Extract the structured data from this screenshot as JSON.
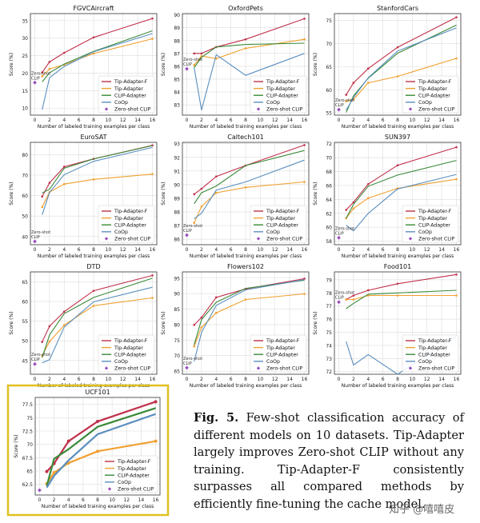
{
  "caption": {
    "label": "Fig. 5.",
    "text": "Few-shot classification accuracy of different models on 10 datasets. Tip-Adapter largely improves Zero-shot CLIP without any training. Tip-Adapter-F consistently surpasses all compared methods by efficiently fine-tuning the cache model."
  },
  "watermark": "知乎 @嘻嘻皮",
  "colors": {
    "tip_adapter_f": "#c0304a",
    "tip_adapter": "#f0a030",
    "clip_adapter": "#3a8a3a",
    "coop": "#5b8fbf",
    "zero_shot": "#9a4fc0",
    "highlight_border": "#e0c020"
  },
  "chart_data": [
    {
      "type": "line",
      "title": "FGVCAircraft",
      "xlabel": "Number of labeled training examples per class",
      "ylabel": "Score (%)",
      "x": [
        1,
        2,
        4,
        8,
        16
      ],
      "xticks": [
        0,
        2,
        4,
        6,
        8,
        10,
        12,
        14,
        16
      ],
      "ylim": [
        8,
        37
      ],
      "yticks": [
        10,
        15,
        20,
        25,
        30,
        35
      ],
      "series": [
        {
          "name": "Tip-Adapter-F",
          "values": [
            20.2,
            23.2,
            25.8,
            30.2,
            35.6
          ]
        },
        {
          "name": "Tip-Adapter",
          "values": [
            19.1,
            21.2,
            22.4,
            25.6,
            29.8
          ]
        },
        {
          "name": "CLIP-Adapter",
          "values": [
            17.5,
            20.1,
            22.6,
            26.2,
            32.1
          ]
        },
        {
          "name": "CoOp",
          "values": [
            9.6,
            18.7,
            21.9,
            26.1,
            31.3
          ]
        }
      ],
      "zero_shot": {
        "name": "Zero-shot CLIP",
        "x": 0,
        "value": 17.3,
        "label": "Zero-shot CLIP"
      },
      "legend": "bottom-right"
    },
    {
      "type": "line",
      "title": "OxfordPets",
      "xlabel": "Number of labeled training examples per class",
      "ylabel": "Score (%)",
      "x": [
        1,
        2,
        4,
        8,
        16
      ],
      "xticks": [
        0,
        2,
        4,
        6,
        8,
        10,
        12,
        14,
        16
      ],
      "ylim": [
        82.2,
        90.1
      ],
      "yticks": [
        83,
        84,
        85,
        86,
        87,
        88,
        89,
        90
      ],
      "series": [
        {
          "name": "Tip-Adapter-F",
          "values": [
            87.0,
            87.0,
            87.5,
            88.1,
            89.7
          ]
        },
        {
          "name": "Tip-Adapter",
          "values": [
            86.1,
            86.8,
            86.6,
            87.4,
            88.1
          ]
        },
        {
          "name": "CLIP-Adapter",
          "values": [
            85.9,
            86.7,
            87.5,
            87.7,
            87.8
          ]
        },
        {
          "name": "CoOp",
          "values": [
            85.9,
            82.6,
            86.9,
            85.3,
            87.0
          ]
        }
      ],
      "zero_shot": {
        "name": "Zero-shot CLIP",
        "x": 0,
        "value": 85.8,
        "label": "Zero-shot CLIP"
      },
      "legend": "bottom-right"
    },
    {
      "type": "line",
      "title": "StanfordCars",
      "xlabel": "Number of labeled training examples per class",
      "ylabel": "Score (%)",
      "x": [
        1,
        2,
        4,
        8,
        16
      ],
      "xticks": [
        0,
        2,
        4,
        6,
        8,
        10,
        12,
        14,
        16
      ],
      "ylim": [
        54.5,
        76.5
      ],
      "yticks": [
        55,
        60,
        65,
        70,
        75
      ],
      "series": [
        {
          "name": "Tip-Adapter-F",
          "values": [
            58.9,
            61.5,
            64.6,
            69.2,
            75.7
          ]
        },
        {
          "name": "Tip-Adapter",
          "values": [
            57.5,
            57.9,
            61.5,
            62.9,
            66.8
          ]
        },
        {
          "name": "CLIP-Adapter",
          "values": [
            55.1,
            58.7,
            62.5,
            67.9,
            74.0
          ]
        },
        {
          "name": "CoOp",
          "values": [
            55.6,
            58.3,
            62.6,
            68.4,
            73.4
          ]
        }
      ],
      "zero_shot": {
        "name": "Zero-shot CLIP",
        "x": 0,
        "value": 55.7,
        "label": "Zero-shot CLIP"
      },
      "legend": "bottom-right"
    },
    {
      "type": "line",
      "title": "EuroSAT",
      "xlabel": "Number of labeled training examples per class",
      "ylabel": "Score (%)",
      "x": [
        1,
        2,
        4,
        8,
        16
      ],
      "xticks": [
        0,
        2,
        4,
        6,
        8,
        10,
        12,
        14,
        16
      ],
      "ylim": [
        36,
        86
      ],
      "yticks": [
        40,
        50,
        60,
        70,
        80
      ],
      "series": [
        {
          "name": "Tip-Adapter-F",
          "values": [
            59.5,
            66.2,
            74.1,
            77.9,
            84.5
          ]
        },
        {
          "name": "Tip-Adapter",
          "values": [
            54.4,
            61.7,
            65.6,
            67.9,
            70.5
          ]
        },
        {
          "name": "CLIP-Adapter",
          "values": [
            61.3,
            63.1,
            73.4,
            77.9,
            84.4
          ]
        },
        {
          "name": "CoOp",
          "values": [
            50.6,
            61.5,
            70.2,
            76.7,
            83.5
          ]
        }
      ],
      "zero_shot": {
        "name": "Zero-shot CLIP",
        "x": 0,
        "value": 37.6,
        "label": "Zero-shot CLIP"
      },
      "legend": "bottom-right"
    },
    {
      "type": "line",
      "title": "Caltech101",
      "xlabel": "Number of labeled training examples per class",
      "ylabel": "Score (%)",
      "x": [
        1,
        2,
        4,
        8,
        16
      ],
      "xticks": [
        0,
        2,
        4,
        6,
        8,
        10,
        12,
        14,
        16
      ],
      "ylim": [
        85.6,
        93.1
      ],
      "yticks": [
        86,
        87,
        88,
        89,
        90,
        91,
        92,
        93
      ],
      "series": [
        {
          "name": "Tip-Adapter-F",
          "values": [
            89.3,
            89.7,
            90.6,
            91.4,
            92.9
          ]
        },
        {
          "name": "Tip-Adapter",
          "values": [
            87.2,
            88.4,
            89.4,
            89.8,
            90.2
          ]
        },
        {
          "name": "CLIP-Adapter",
          "values": [
            88.6,
            89.4,
            89.9,
            91.4,
            92.5
          ]
        },
        {
          "name": "CoOp",
          "values": [
            87.5,
            87.9,
            89.6,
            90.2,
            91.8
          ]
        }
      ],
      "zero_shot": {
        "name": "Zero-shot CLIP",
        "x": 0,
        "value": 86.3,
        "label": "Zero-shot CLIP"
      },
      "legend": "bottom-right"
    },
    {
      "type": "line",
      "title": "SUN397",
      "xlabel": "Number of labeled training examples per class",
      "ylabel": "Score (%)",
      "x": [
        1,
        2,
        4,
        8,
        16
      ],
      "xticks": [
        0,
        2,
        4,
        6,
        8,
        10,
        12,
        14,
        16
      ],
      "ylim": [
        57.5,
        72.2
      ],
      "yticks": [
        58,
        60,
        62,
        64,
        66,
        68,
        70,
        72
      ],
      "series": [
        {
          "name": "Tip-Adapter-F",
          "values": [
            62.5,
            63.6,
            66.2,
            68.9,
            71.5
          ]
        },
        {
          "name": "Tip-Adapter",
          "values": [
            61.3,
            62.7,
            64.2,
            65.6,
            66.9
          ]
        },
        {
          "name": "CLIP-Adapter",
          "values": [
            61.3,
            63.3,
            65.9,
            67.5,
            69.6
          ]
        },
        {
          "name": "CoOp",
          "values": [
            60.3,
            59.5,
            62.0,
            65.5,
            67.6
          ]
        }
      ],
      "zero_shot": {
        "name": "Zero-shot CLIP",
        "x": 0,
        "value": 58.5,
        "label": "Zero-shot CLIP"
      },
      "legend": "bottom-right"
    },
    {
      "type": "line",
      "title": "DTD",
      "xlabel": "Number of labeled training examples per class",
      "ylabel": "Score (%)",
      "x": [
        1,
        2,
        4,
        8,
        16
      ],
      "xticks": [
        0,
        2,
        4,
        6,
        8,
        10,
        12,
        14,
        16
      ],
      "ylim": [
        41.5,
        67.5
      ],
      "yticks": [
        45,
        50,
        55,
        60,
        65
      ],
      "series": [
        {
          "name": "Tip-Adapter-F",
          "values": [
            49.7,
            53.7,
            57.4,
            62.7,
            66.6
          ]
        },
        {
          "name": "Tip-Adapter",
          "values": [
            46.2,
            49.8,
            54.0,
            58.9,
            60.9
          ]
        },
        {
          "name": "CLIP-Adapter",
          "values": [
            45.7,
            51.5,
            56.9,
            61.0,
            65.9
          ]
        },
        {
          "name": "CoOp",
          "values": [
            44.4,
            45.2,
            53.5,
            59.9,
            63.6
          ]
        }
      ],
      "zero_shot": {
        "name": "Zero-shot CLIP",
        "x": 0,
        "value": 44.1,
        "label": "Zero-shot CLIP"
      },
      "legend": "bottom-right"
    },
    {
      "type": "line",
      "title": "Flowers102",
      "xlabel": "Number of labeled training examples per class",
      "ylabel": "Score (%)",
      "x": [
        1,
        2,
        4,
        8,
        16
      ],
      "xticks": [
        0,
        2,
        4,
        6,
        8,
        10,
        12,
        14,
        16
      ],
      "ylim": [
        64,
        97
      ],
      "yticks": [
        65,
        70,
        75,
        80,
        85,
        90,
        95
      ],
      "series": [
        {
          "name": "Tip-Adapter-F",
          "values": [
            79.9,
            82.3,
            88.8,
            91.5,
            94.8
          ]
        },
        {
          "name": "Tip-Adapter",
          "values": [
            73.0,
            79.1,
            83.8,
            88.1,
            89.9
          ]
        },
        {
          "name": "CLIP-Adapter",
          "values": [
            73.5,
            81.6,
            87.2,
            91.7,
            94.3
          ]
        },
        {
          "name": "CoOp",
          "values": [
            68.1,
            77.5,
            86.2,
            91.2,
            94.5
          ]
        }
      ],
      "zero_shot": {
        "name": "Zero-shot CLIP",
        "x": 0,
        "value": 66.1,
        "label": "Zero-shot CLIP"
      },
      "legend": "bottom-right"
    },
    {
      "type": "line",
      "title": "Food101",
      "xlabel": "Number of labeled training examples per class",
      "ylabel": "Score (%)",
      "x": [
        1,
        2,
        4,
        8,
        16
      ],
      "xticks": [
        0,
        2,
        4,
        6,
        8,
        10,
        12,
        14,
        16
      ],
      "ylim": [
        71.8,
        79.6
      ],
      "yticks": [
        72,
        73,
        74,
        75,
        76,
        77,
        78,
        79
      ],
      "series": [
        {
          "name": "Tip-Adapter-F",
          "values": [
            77.5,
            77.8,
            78.2,
            78.7,
            79.4
          ]
        },
        {
          "name": "Tip-Adapter",
          "values": [
            77.5,
            77.5,
            77.8,
            77.8,
            77.8
          ]
        },
        {
          "name": "CLIP-Adapter",
          "values": [
            76.8,
            77.2,
            77.9,
            78.0,
            78.2
          ]
        },
        {
          "name": "CoOp",
          "values": [
            74.3,
            72.5,
            73.3,
            71.8,
            74.7
          ]
        }
      ],
      "zero_shot": {
        "name": "Zero-shot CLIP",
        "x": 0,
        "value": 77.3,
        "label": "Zero-shot CLIP"
      },
      "legend": "bottom-right"
    },
    {
      "type": "line",
      "title": "UCF101",
      "xlabel": "Number of labeled training examples per class",
      "ylabel": "Score (%)",
      "x": [
        1,
        2,
        4,
        8,
        16
      ],
      "xticks": [
        0,
        2,
        4,
        6,
        8,
        10,
        12,
        14,
        16
      ],
      "ylim": [
        60.5,
        78.8
      ],
      "yticks": [
        62.5,
        65.0,
        67.5,
        70.0,
        72.5,
        75.0,
        77.5
      ],
      "series": [
        {
          "name": "Tip-Adapter-F",
          "values": [
            64.9,
            66.4,
            70.6,
            74.3,
            78.0
          ]
        },
        {
          "name": "Tip-Adapter",
          "values": [
            62.6,
            64.7,
            66.5,
            68.7,
            70.6
          ]
        },
        {
          "name": "CLIP-Adapter",
          "values": [
            62.2,
            67.3,
            69.1,
            73.3,
            76.8
          ]
        },
        {
          "name": "CoOp",
          "values": [
            61.9,
            64.1,
            67.0,
            71.9,
            75.7
          ]
        }
      ],
      "zero_shot": {
        "name": "Zero-shot CLIP",
        "x": 0,
        "value": 61.4,
        "label": null
      },
      "legend": "bottom-right",
      "highlighted": true
    }
  ]
}
